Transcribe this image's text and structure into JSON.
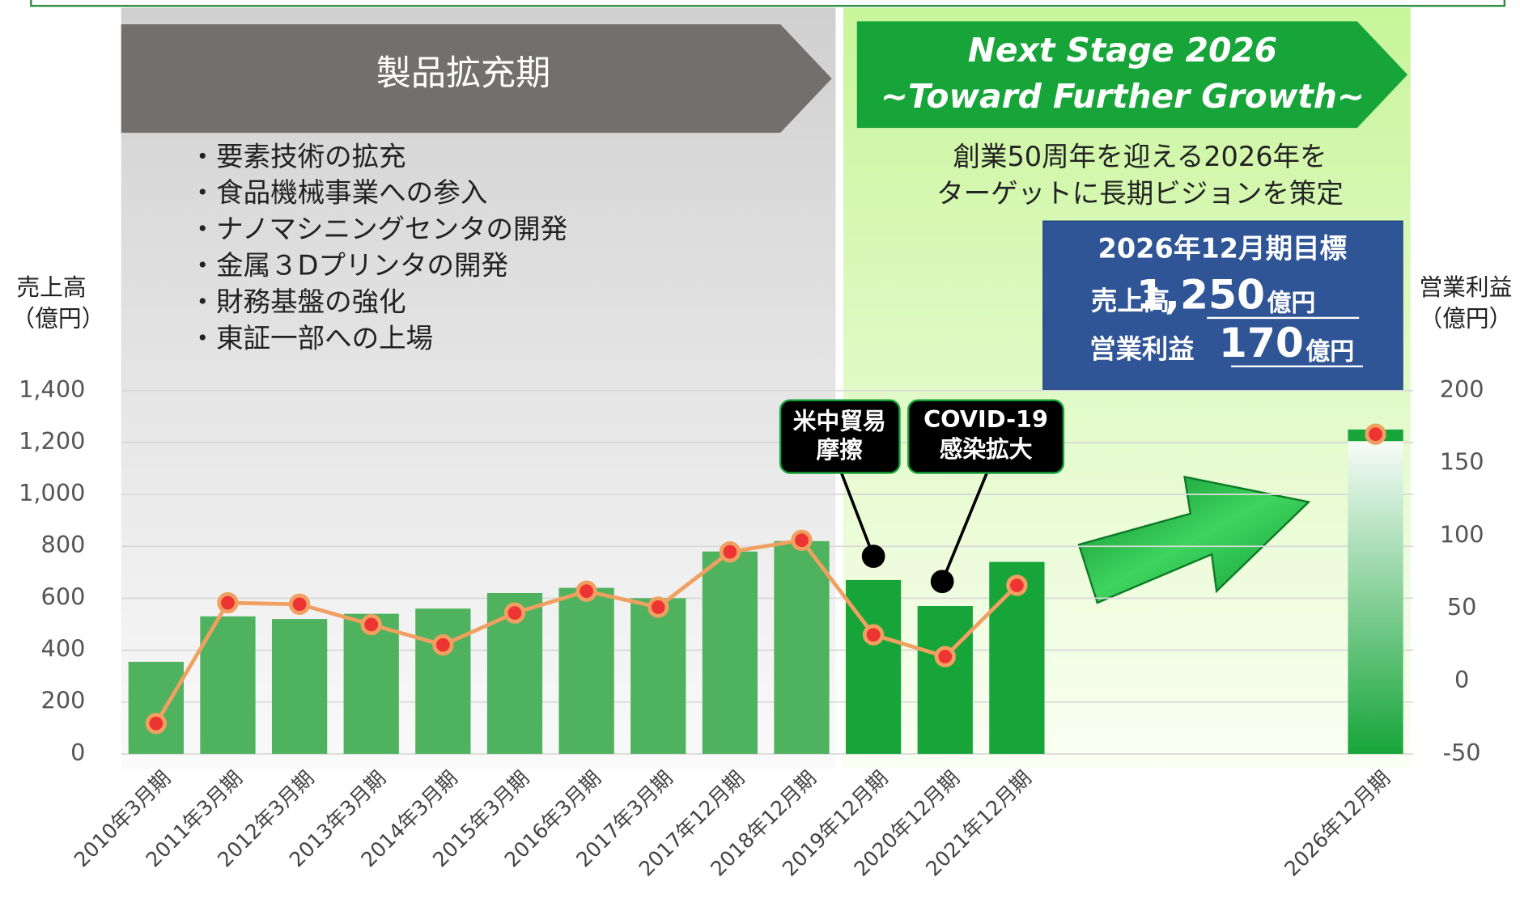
{
  "chart_data": {
    "type": "bar",
    "categories": [
      "2010年3月期",
      "2011年3月期",
      "2012年3月期",
      "2013年3月期",
      "2014年3月期",
      "2015年3月期",
      "2016年3月期",
      "2017年3月期",
      "2017年12月期",
      "2018年12月期",
      "2019年12月期",
      "2020年12月期",
      "2021年12月期",
      null,
      null,
      null,
      null,
      "2026年12月期"
    ],
    "series": [
      {
        "type": "bar",
        "color": "#4fb25e",
        "highlight_color": "#17a53a",
        "highlight_from": 10,
        "values": [
          355,
          530,
          520,
          540,
          560,
          620,
          640,
          600,
          780,
          820,
          670,
          570,
          740,
          null,
          null,
          null,
          null,
          1250
        ]
      },
      {
        "type": "line",
        "axis": "y2",
        "color": "#f0a060",
        "marker_color": "#ee3333",
        "values": [
          -29,
          54,
          53,
          39,
          25,
          47,
          62,
          51,
          89,
          97,
          32,
          17,
          66,
          null,
          null,
          null,
          null,
          170
        ]
      }
    ],
    "ylim": [
      0,
      1400
    ],
    "yticks": [
      0,
      200,
      400,
      600,
      800,
      {
        "value": 1000,
        "label": "1,000"
      },
      {
        "value": 1200,
        "label": "1,200"
      },
      {
        "value": 1400,
        "label": "1,400"
      }
    ],
    "y2lim": [
      -50,
      200
    ],
    "y2ticks": [
      -50,
      0,
      50,
      100,
      150,
      200
    ],
    "ylabel": [
      "売上高",
      "（億円）"
    ],
    "y2label": [
      "営業利益",
      "（億円）"
    ],
    "grid": true
  },
  "panels": {
    "left_header": "製品拡充期",
    "left_bullets": [
      "・要素技術の拡充",
      "・食品機械事業への参入",
      "・ナノマシニングセンタの開発",
      "・金属３Dプリンタの開発",
      "・財務基盤の強化",
      "・東証一部への上場"
    ],
    "right_header": [
      "Next Stage 2026",
      "~Toward Further Growth~"
    ],
    "right_text": [
      "創業50周年を迎える2026年を",
      "ターゲットに長期ビジョンを策定"
    ],
    "target": {
      "title": "2026年12月期目標",
      "rows": [
        {
          "label": "売上高",
          "value": "1,250",
          "unit": "億円"
        },
        {
          "label": "営業利益",
          "value": "170",
          "unit": "億円"
        }
      ]
    },
    "callouts": [
      [
        "米中貿易",
        "摩擦"
      ],
      [
        "COVID-19",
        "感染拡大"
      ]
    ]
  }
}
